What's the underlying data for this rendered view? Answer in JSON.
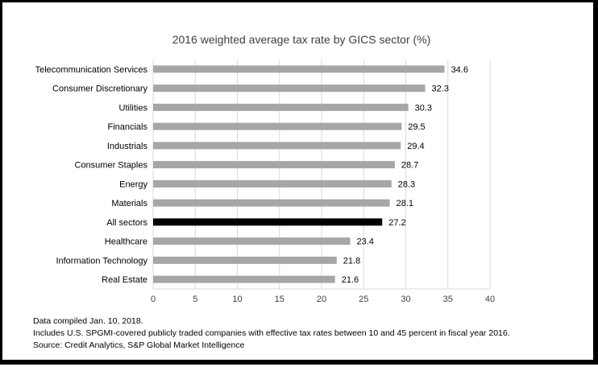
{
  "chart_data": {
    "type": "bar",
    "orientation": "horizontal",
    "title": "2016 weighted average tax rate by GICS sector (%)",
    "categories": [
      "Telecommunication Services",
      "Consumer Discretionary",
      "Utilities",
      "Financials",
      "Industrials",
      "Consumer Staples",
      "Energy",
      "Materials",
      "All sectors",
      "Healthcare",
      "Information Technology",
      "Real Estate"
    ],
    "values": [
      34.6,
      32.3,
      30.3,
      29.5,
      29.4,
      28.7,
      28.3,
      28.1,
      27.2,
      23.4,
      21.8,
      21.6
    ],
    "highlight_category": "All sectors",
    "colors": {
      "bar": "#a6a6a6",
      "highlight": "#000000",
      "grid": "#d9d9d9",
      "text": "#404040"
    },
    "xlim": [
      0,
      40
    ],
    "xticks": [
      0,
      5,
      10,
      15,
      20,
      25,
      30,
      35,
      40
    ],
    "xlabel": "",
    "ylabel": "",
    "grid": true,
    "data_labels": true
  },
  "footnotes": {
    "line1": "Data compiled Jan. 10, 2018.",
    "line2": "Includes U.S. SPGMI-covered publicly traded companies with effective tax rates between 10 and 45 percent in fiscal year 2016.",
    "line3": "Source: Credit Analytics, S&P Global Market Intelligence"
  }
}
